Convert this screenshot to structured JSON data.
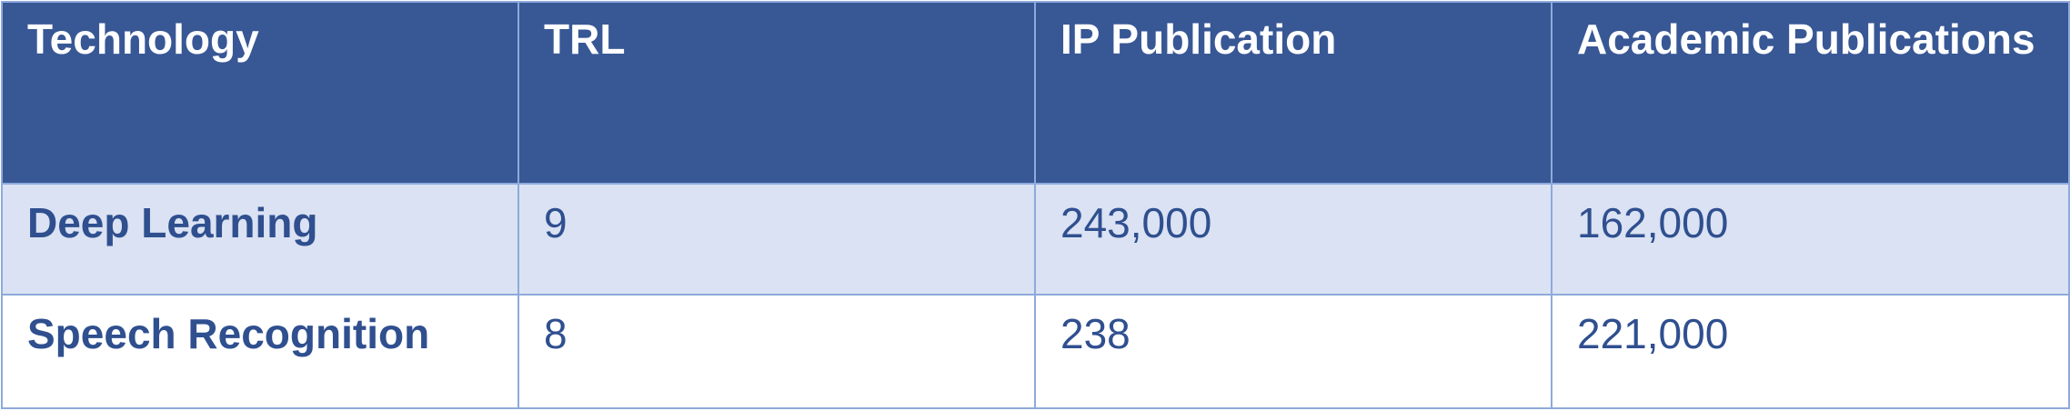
{
  "table": {
    "headers": [
      "Technology",
      "TRL",
      "IP Publication",
      "Academic Publications"
    ],
    "rows": [
      [
        "Deep Learning",
        "9",
        "243,000",
        "162,000"
      ],
      [
        "Speech Recognition",
        "8",
        "238",
        "221,000"
      ]
    ]
  },
  "colors": {
    "header_bg": "#385795",
    "header_text": "#ffffff",
    "band_bg": "#dae2f3",
    "body_text": "#2f4f8f",
    "border": "#8eaadb"
  }
}
